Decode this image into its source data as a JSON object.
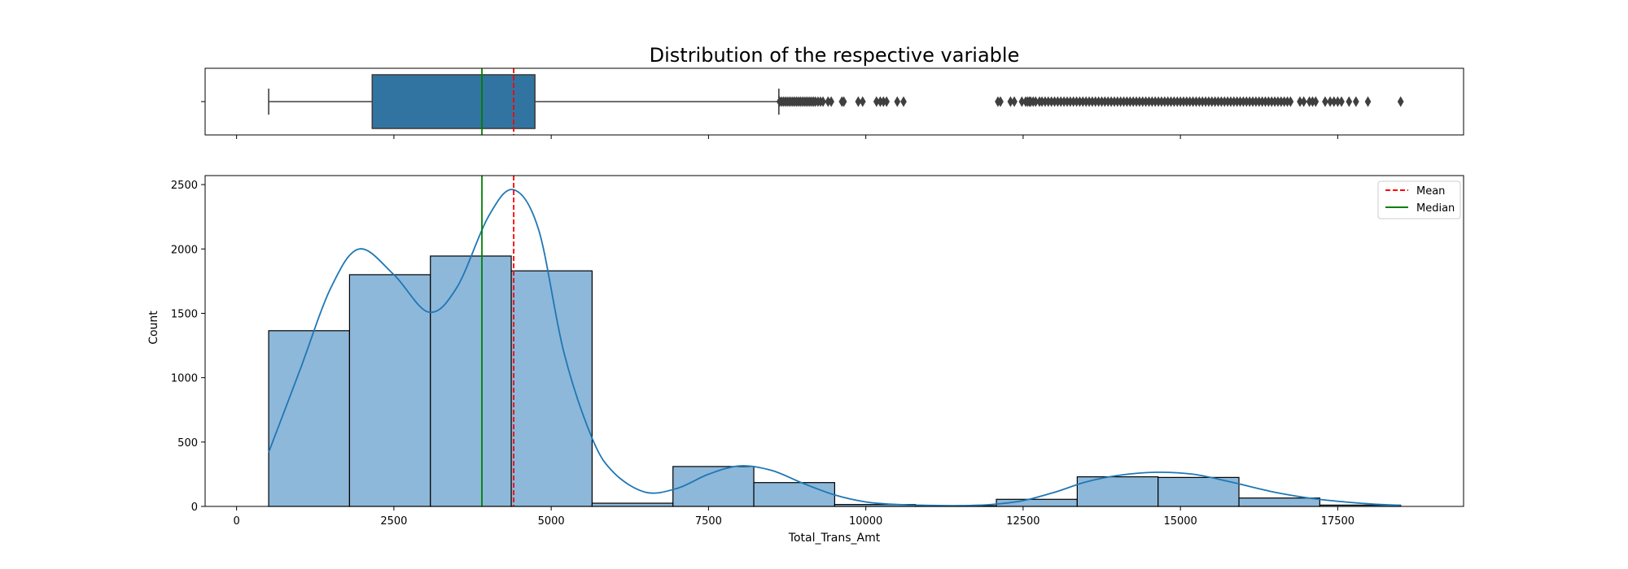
{
  "chart_data": {
    "type": "histogram",
    "title": "Distribution of the respective variable",
    "xlabel": "Total_Trans_Amt",
    "ylabel": "Count",
    "xlim": [
      -500,
      19500
    ],
    "ylim": [
      0,
      2570
    ],
    "x_ticks": [
      0,
      2500,
      5000,
      7500,
      10000,
      12500,
      15000,
      17500
    ],
    "x_tick_labels": [
      "0",
      "2500",
      "5000",
      "7500",
      "10000",
      "12500",
      "15000",
      "17500"
    ],
    "y_ticks": [
      0,
      500,
      1000,
      1500,
      2000,
      2500
    ],
    "y_tick_labels": [
      "0",
      "500",
      "1000",
      "1500",
      "2000",
      "2500"
    ],
    "histogram": {
      "bin_edges": [
        510,
        1795,
        3080,
        4365,
        5650,
        6935,
        8220,
        9505,
        10790,
        12075,
        13360,
        14645,
        15930,
        17215,
        18500
      ],
      "counts": [
        1365,
        1800,
        1945,
        1830,
        25,
        310,
        185,
        15,
        5,
        55,
        230,
        225,
        65,
        10
      ],
      "color": "#8db8da",
      "edge_color": "#000000"
    },
    "kde": {
      "color": "#1f77b4",
      "x": [
        510,
        1000,
        1500,
        1950,
        2500,
        3050,
        3500,
        4000,
        4400,
        4800,
        5200,
        5650,
        6000,
        6500,
        7000,
        7500,
        8000,
        8500,
        9000,
        9500,
        10000,
        10500,
        11000,
        11500,
        12000,
        12500,
        13000,
        13500,
        14000,
        14600,
        15200,
        15800,
        16500,
        17200,
        18000,
        18500
      ],
      "y": [
        420,
        1050,
        1700,
        2000,
        1800,
        1510,
        1700,
        2250,
        2460,
        2150,
        1200,
        530,
        260,
        110,
        140,
        250,
        315,
        280,
        180,
        90,
        35,
        15,
        8,
        6,
        15,
        45,
        110,
        190,
        240,
        265,
        250,
        190,
        110,
        55,
        20,
        8
      ]
    },
    "mean": {
      "value": 4404,
      "label": "Mean",
      "color": "#ff0000",
      "style": "dashed"
    },
    "median": {
      "value": 3899,
      "label": "Median",
      "color": "#008000",
      "style": "solid"
    },
    "legend": {
      "placement": "top-right",
      "entries": [
        "Mean",
        "Median"
      ]
    },
    "boxplot": {
      "whisker_low": 510,
      "q1": 2156,
      "median": 3899,
      "q3": 4741,
      "whisker_high": 8618,
      "mean": 4404,
      "box_color": "#3274a1",
      "outliers": [
        8630,
        8660,
        8690,
        8720,
        8750,
        8780,
        8810,
        8840,
        8870,
        8900,
        8930,
        8960,
        8990,
        9020,
        9050,
        9080,
        9110,
        9140,
        9170,
        9200,
        9240,
        9280,
        9320,
        9400,
        9450,
        9620,
        9650,
        9880,
        9950,
        10170,
        10230,
        10280,
        10330,
        10500,
        10600,
        12100,
        12140,
        12300,
        12360,
        12480,
        12540,
        12570,
        12600,
        12620,
        12660,
        12700,
        12760,
        12800,
        12850,
        12900,
        12950,
        13000,
        13050,
        13100,
        13150,
        13200,
        13250,
        13300,
        13350,
        13400,
        13450,
        13500,
        13550,
        13600,
        13650,
        13700,
        13750,
        13800,
        13850,
        13900,
        13950,
        14000,
        14050,
        14100,
        14150,
        14200,
        14250,
        14300,
        14350,
        14400,
        14450,
        14500,
        14550,
        14600,
        14650,
        14700,
        14750,
        14800,
        14850,
        14900,
        14950,
        15000,
        15050,
        15100,
        15150,
        15200,
        15250,
        15300,
        15350,
        15400,
        15450,
        15500,
        15550,
        15600,
        15650,
        15700,
        15750,
        15800,
        15850,
        15900,
        15950,
        16000,
        16050,
        16100,
        16150,
        16200,
        16250,
        16300,
        16350,
        16400,
        16450,
        16500,
        16550,
        16600,
        16650,
        16700,
        16750,
        16900,
        16960,
        17050,
        17100,
        17150,
        17300,
        17380,
        17440,
        17500,
        17560,
        17680,
        17790,
        17980,
        18500
      ]
    }
  }
}
